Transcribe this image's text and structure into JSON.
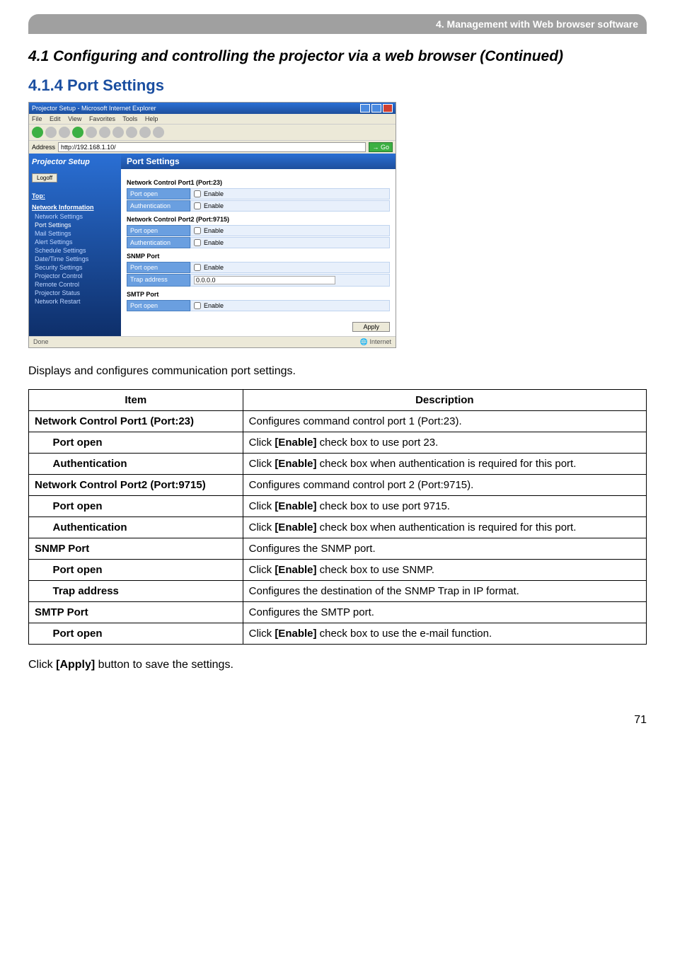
{
  "header_bar": "4. Management with Web browser software",
  "section_title": "4.1 Configuring and controlling the projector via a web browser (Continued)",
  "subsection_title": "4.1.4 Port Settings",
  "intro_text": "Displays and configures communication port settings.",
  "table": {
    "headers": [
      "Item",
      "Description"
    ],
    "rows": [
      {
        "type": "main",
        "item": "Network Control Port1 (Port:23)",
        "desc": "Configures command control port 1 (Port:23)."
      },
      {
        "type": "sub",
        "item": "Port open",
        "desc_pre": "Click ",
        "desc_bold": "[Enable]",
        "desc_post": " check box to use port 23."
      },
      {
        "type": "sub",
        "item": "Authentication",
        "desc_pre": "Click ",
        "desc_bold": "[Enable]",
        "desc_post": " check box when authentication is required for this port."
      },
      {
        "type": "main",
        "item": "Network Control Port2 (Port:9715)",
        "desc": "Configures command control port 2 (Port:9715)."
      },
      {
        "type": "sub",
        "item": "Port open",
        "desc_pre": "Click ",
        "desc_bold": "[Enable]",
        "desc_post": " check box to use port 9715."
      },
      {
        "type": "sub",
        "item": "Authentication",
        "desc_pre": "Click ",
        "desc_bold": "[Enable]",
        "desc_post": " check box when authentication is required for this port."
      },
      {
        "type": "main",
        "item": "SNMP Port",
        "desc": "Configures the SNMP port."
      },
      {
        "type": "sub",
        "item": "Port open",
        "desc_pre": "Click ",
        "desc_bold": "[Enable]",
        "desc_post": " check box to use SNMP."
      },
      {
        "type": "sub",
        "item": "Trap address",
        "desc": "Configures the destination of the SNMP Trap in IP format."
      },
      {
        "type": "main",
        "item": "SMTP Port",
        "desc": "Configures the SMTP port."
      },
      {
        "type": "sub",
        "item": "Port open",
        "desc_pre": "Click ",
        "desc_bold": "[Enable]",
        "desc_post": " check box to use the e-mail function."
      }
    ]
  },
  "bottom_text_pre": "Click ",
  "bottom_text_bold": "[Apply]",
  "bottom_text_post": " button to save the settings.",
  "page_number": "71",
  "screenshot": {
    "window_title": "Projector Setup - Microsoft Internet Explorer",
    "menu": [
      "File",
      "Edit",
      "View",
      "Favorites",
      "Tools",
      "Help"
    ],
    "addr_label": "Address",
    "addr_value": "http://192.168.1.10/",
    "go_label": "Go",
    "sidebar": {
      "logo": "Projector Setup",
      "logoff": "Logoff",
      "sections": [
        {
          "title": "Top:",
          "links": []
        },
        {
          "title": "Network Information",
          "links": []
        },
        {
          "title": "",
          "links": [
            "Network Settings",
            "Port Settings",
            "Mail Settings",
            "Alert Settings",
            "Schedule Settings",
            "Date/Time Settings",
            "Security Settings",
            "Projector Control",
            "Remote Control",
            "Projector Status",
            "Network Restart"
          ]
        }
      ],
      "active": "Port Settings"
    },
    "main_header": "Port Settings",
    "groups": [
      {
        "title": "Network Control Port1 (Port:23)",
        "rows": [
          {
            "label": "Port open",
            "type": "check",
            "value": "Enable"
          },
          {
            "label": "Authentication",
            "type": "check",
            "value": "Enable"
          }
        ]
      },
      {
        "title": "Network Control Port2 (Port:9715)",
        "rows": [
          {
            "label": "Port open",
            "type": "check",
            "value": "Enable"
          },
          {
            "label": "Authentication",
            "type": "check",
            "value": "Enable"
          }
        ]
      },
      {
        "title": "SNMP Port",
        "rows": [
          {
            "label": "Port open",
            "type": "check",
            "value": "Enable"
          },
          {
            "label": "Trap address",
            "type": "text",
            "value": "0.0.0.0"
          }
        ]
      },
      {
        "title": "SMTP Port",
        "rows": [
          {
            "label": "Port open",
            "type": "check",
            "value": "Enable"
          }
        ]
      }
    ],
    "apply_label": "Apply",
    "status_left": "Done",
    "status_right": "Internet"
  }
}
